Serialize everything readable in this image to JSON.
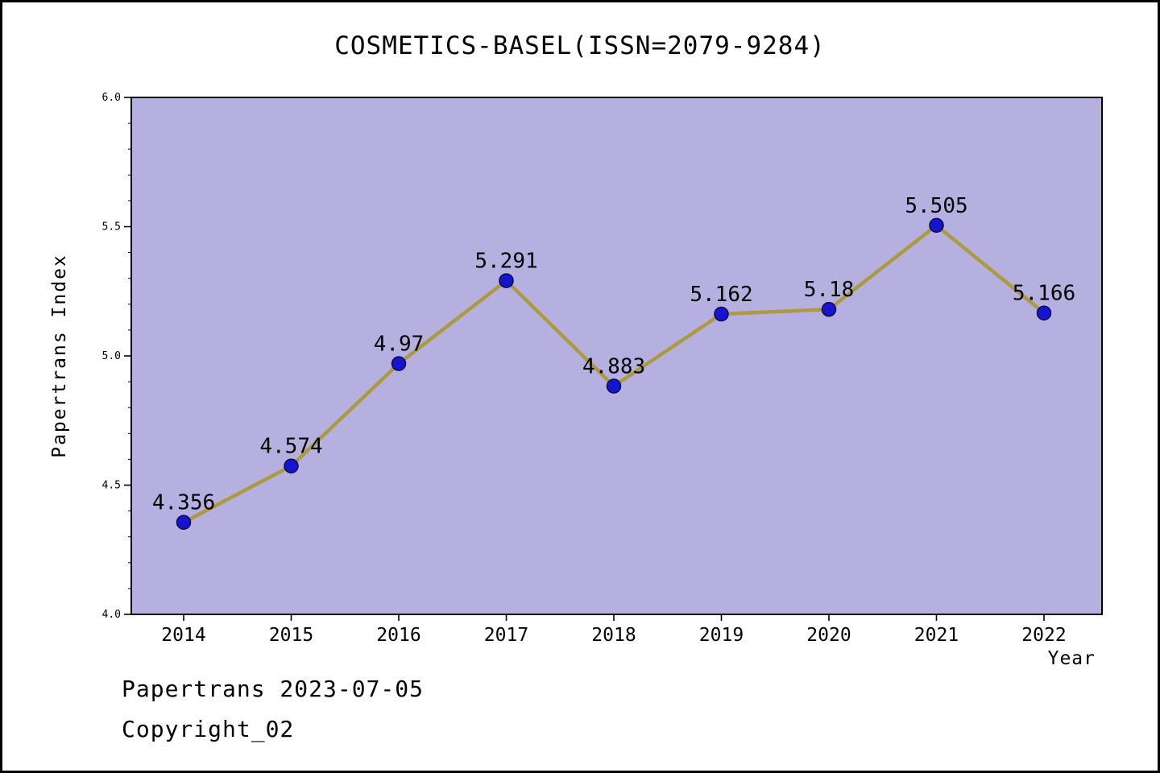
{
  "title": "COSMETICS-BASEL(ISSN=2079-9284)",
  "footer": {
    "line1": "Papertrans 2023-07-05",
    "line2": "Copyright_02"
  },
  "chart_data": {
    "type": "line",
    "title": "COSMETICS-BASEL(ISSN=2079-9284)",
    "xlabel": "Year",
    "ylabel": "Papertrans Index",
    "x": [
      2014,
      2015,
      2016,
      2017,
      2018,
      2019,
      2020,
      2021,
      2022
    ],
    "values": [
      4.356,
      4.574,
      4.97,
      5.291,
      4.883,
      5.162,
      5.18,
      5.505,
      5.166
    ],
    "labels": [
      "4.356",
      "4.574",
      "4.97",
      "5.291",
      "4.883",
      "5.162",
      "5.18",
      "5.505",
      "5.166"
    ],
    "ylim": [
      4.0,
      6.0
    ],
    "yticks": [
      4.0,
      4.5,
      5.0,
      5.5,
      6.0
    ],
    "minor_tick_step": 0.1,
    "legend": "none",
    "grid": false,
    "colors": {
      "plot_bg": "#b6b0e0",
      "line": "#ac9b3e",
      "marker_fill": "#1515cd",
      "marker_edge": "#0a0a55",
      "axis": "#000000"
    }
  }
}
